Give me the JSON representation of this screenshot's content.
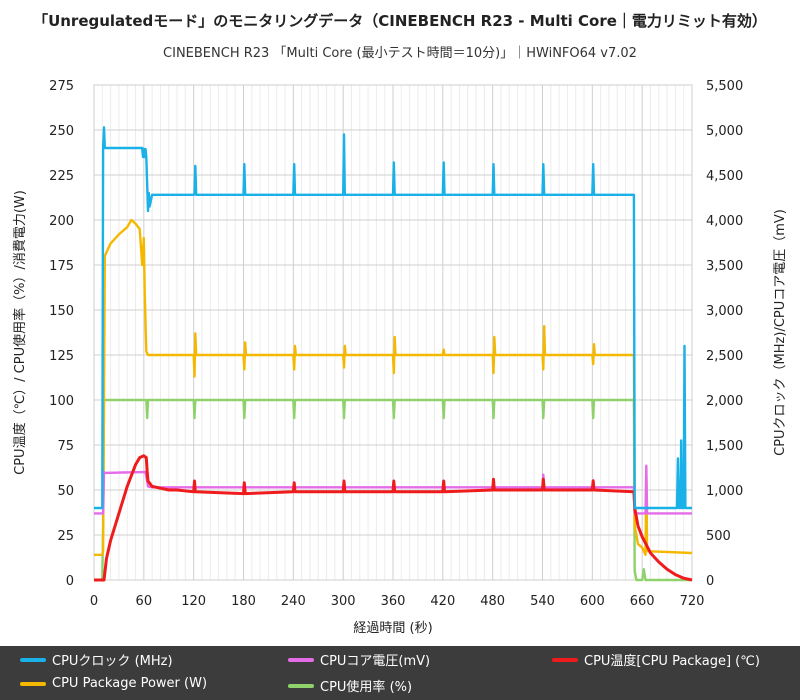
{
  "header": {
    "title": "「Unregulatedモード」のモニタリングデータ（CINEBENCH R23 - Multi Core｜電力リミット有効）",
    "subtitle": "CINEBENCH R23 「Multi Core (最小テスト時間＝10分)」｜HWiNFO64 v7.02"
  },
  "chart_data": {
    "type": "line",
    "title": "「Unregulatedモード」のモニタリングデータ（CINEBENCH R23 - Multi Core｜電力リミット有効）",
    "xlabel": "経過時間 (秒)",
    "ylabel_left": "CPU温度（℃）/ CPU使用率（%）/消費電力(W)",
    "ylabel_right": "CPUクロック（MHz)/CPUコア電圧（mV)",
    "xlim": [
      0,
      720
    ],
    "ylim_left": [
      0,
      275
    ],
    "ylim_right": [
      0,
      5500
    ],
    "x_ticks": [
      "0",
      "60",
      "120",
      "180",
      "240",
      "300",
      "360",
      "420",
      "480",
      "540",
      "600",
      "660",
      "720"
    ],
    "y_ticks_left": [
      "0",
      "25",
      "50",
      "75",
      "100",
      "125",
      "150",
      "175",
      "200",
      "225",
      "250",
      "275"
    ],
    "y_ticks_right": [
      "0",
      "500",
      "1,000",
      "1,500",
      "2,000",
      "2,500",
      "3,000",
      "3,500",
      "4,000",
      "4,500",
      "5,000",
      "5,500"
    ],
    "grid": true,
    "series": [
      {
        "name": "CPUクロック (MHz)",
        "axis": "right",
        "color": "#1ab0e8",
        "points": [
          [
            0,
            800
          ],
          [
            10,
            800
          ],
          [
            11,
            4800
          ],
          [
            12,
            5030
          ],
          [
            13,
            4800
          ],
          [
            58,
            4800
          ],
          [
            59,
            4700
          ],
          [
            60,
            4790
          ],
          [
            61,
            4700
          ],
          [
            62,
            4790
          ],
          [
            63,
            4700
          ],
          [
            65,
            4100
          ],
          [
            66,
            4300
          ],
          [
            67,
            4150
          ],
          [
            70,
            4280
          ],
          [
            120,
            4280
          ],
          [
            121,
            4290
          ],
          [
            122,
            4600
          ],
          [
            123,
            4280
          ],
          [
            180,
            4280
          ],
          [
            181,
            4620
          ],
          [
            182,
            4280
          ],
          [
            240,
            4280
          ],
          [
            241,
            4620
          ],
          [
            242,
            4280
          ],
          [
            300,
            4280
          ],
          [
            301,
            4950
          ],
          [
            302,
            4280
          ],
          [
            360,
            4280
          ],
          [
            361,
            4640
          ],
          [
            362,
            4280
          ],
          [
            420,
            4280
          ],
          [
            421,
            4640
          ],
          [
            422,
            4280
          ],
          [
            480,
            4280
          ],
          [
            481,
            4620
          ],
          [
            482,
            4280
          ],
          [
            540,
            4280
          ],
          [
            541,
            4620
          ],
          [
            542,
            4280
          ],
          [
            600,
            4280
          ],
          [
            601,
            4620
          ],
          [
            602,
            4280
          ],
          [
            650,
            4280
          ],
          [
            651,
            800
          ],
          [
            702,
            800
          ],
          [
            703,
            1350
          ],
          [
            704,
            800
          ],
          [
            706,
            800
          ],
          [
            707,
            1550
          ],
          [
            708,
            800
          ],
          [
            710,
            800
          ],
          [
            711,
            2600
          ],
          [
            712,
            800
          ],
          [
            720,
            800
          ]
        ]
      },
      {
        "name": "CPUコア電圧 (mV)",
        "axis": "right",
        "color": "#e56ce8",
        "points": [
          [
            0,
            740
          ],
          [
            11,
            740
          ],
          [
            12,
            1200
          ],
          [
            13,
            1190
          ],
          [
            62,
            1200
          ],
          [
            65,
            1040
          ],
          [
            70,
            1030
          ],
          [
            120,
            1030
          ],
          [
            121,
            1060
          ],
          [
            122,
            1030
          ],
          [
            180,
            1030
          ],
          [
            181,
            1080
          ],
          [
            182,
            1030
          ],
          [
            240,
            1030
          ],
          [
            241,
            1060
          ],
          [
            242,
            1030
          ],
          [
            300,
            1030
          ],
          [
            301,
            1090
          ],
          [
            302,
            1030
          ],
          [
            360,
            1030
          ],
          [
            361,
            1100
          ],
          [
            362,
            1030
          ],
          [
            420,
            1030
          ],
          [
            421,
            1100
          ],
          [
            422,
            1030
          ],
          [
            480,
            1030
          ],
          [
            481,
            1070
          ],
          [
            482,
            1030
          ],
          [
            540,
            1030
          ],
          [
            541,
            1170
          ],
          [
            542,
            1030
          ],
          [
            600,
            1030
          ],
          [
            601,
            1110
          ],
          [
            602,
            1030
          ],
          [
            650,
            1030
          ],
          [
            651,
            740
          ],
          [
            664,
            740
          ],
          [
            665,
            1270
          ],
          [
            666,
            740
          ],
          [
            720,
            740
          ]
        ]
      },
      {
        "name": "CPU温度[CPU Package] (℃)",
        "axis": "left",
        "color": "#ee1c1c",
        "points": [
          [
            0,
            0
          ],
          [
            10,
            0
          ],
          [
            12,
            0
          ],
          [
            15,
            12
          ],
          [
            20,
            22
          ],
          [
            30,
            37
          ],
          [
            40,
            52
          ],
          [
            50,
            64
          ],
          [
            55,
            68
          ],
          [
            60,
            69
          ],
          [
            63,
            68
          ],
          [
            64,
            60
          ],
          [
            65,
            55
          ],
          [
            70,
            52
          ],
          [
            80,
            51
          ],
          [
            90,
            50
          ],
          [
            100,
            50
          ],
          [
            120,
            49
          ],
          [
            121,
            55
          ],
          [
            122,
            49
          ],
          [
            180,
            48
          ],
          [
            181,
            54
          ],
          [
            182,
            48
          ],
          [
            240,
            49
          ],
          [
            241,
            54
          ],
          [
            242,
            49
          ],
          [
            300,
            49
          ],
          [
            301,
            55
          ],
          [
            302,
            49
          ],
          [
            360,
            49
          ],
          [
            361,
            55
          ],
          [
            362,
            49
          ],
          [
            420,
            49
          ],
          [
            421,
            55
          ],
          [
            422,
            49
          ],
          [
            480,
            50
          ],
          [
            481,
            56
          ],
          [
            482,
            50
          ],
          [
            540,
            50
          ],
          [
            541,
            56
          ],
          [
            542,
            50
          ],
          [
            600,
            50
          ],
          [
            601,
            55
          ],
          [
            602,
            50
          ],
          [
            650,
            49
          ],
          [
            651,
            40
          ],
          [
            655,
            30
          ],
          [
            660,
            24
          ],
          [
            670,
            15
          ],
          [
            680,
            10
          ],
          [
            690,
            6
          ],
          [
            700,
            3
          ],
          [
            710,
            1
          ],
          [
            720,
            0
          ]
        ]
      },
      {
        "name": "CPU Package Power (W)",
        "axis": "left",
        "color": "#f5b800",
        "points": [
          [
            0,
            14
          ],
          [
            10,
            14
          ],
          [
            11,
            16
          ],
          [
            13,
            180
          ],
          [
            20,
            187
          ],
          [
            30,
            192
          ],
          [
            40,
            196
          ],
          [
            45,
            200
          ],
          [
            50,
            198
          ],
          [
            55,
            195
          ],
          [
            58,
            175
          ],
          [
            60,
            190
          ],
          [
            61,
            160
          ],
          [
            63,
            127
          ],
          [
            65,
            125
          ],
          [
            120,
            125
          ],
          [
            121,
            113
          ],
          [
            122,
            137
          ],
          [
            123,
            125
          ],
          [
            180,
            125
          ],
          [
            181,
            117
          ],
          [
            182,
            132
          ],
          [
            183,
            125
          ],
          [
            240,
            125
          ],
          [
            241,
            117
          ],
          [
            242,
            130
          ],
          [
            243,
            125
          ],
          [
            300,
            125
          ],
          [
            301,
            118
          ],
          [
            302,
            130
          ],
          [
            303,
            125
          ],
          [
            360,
            125
          ],
          [
            361,
            115
          ],
          [
            362,
            135
          ],
          [
            363,
            125
          ],
          [
            420,
            125
          ],
          [
            421,
            128
          ],
          [
            422,
            125
          ],
          [
            480,
            125
          ],
          [
            481,
            115
          ],
          [
            482,
            135
          ],
          [
            483,
            125
          ],
          [
            540,
            125
          ],
          [
            541,
            117
          ],
          [
            542,
            141
          ],
          [
            543,
            125
          ],
          [
            600,
            125
          ],
          [
            601,
            120
          ],
          [
            602,
            131
          ],
          [
            603,
            125
          ],
          [
            650,
            125
          ],
          [
            651,
            30
          ],
          [
            655,
            20
          ],
          [
            660,
            18
          ],
          [
            664,
            14
          ],
          [
            665,
            60
          ],
          [
            666,
            16
          ],
          [
            720,
            15
          ]
        ]
      },
      {
        "name": "CPU使用率 (%)",
        "axis": "left",
        "color": "#8fd16a",
        "points": [
          [
            0,
            0
          ],
          [
            10,
            0
          ],
          [
            11,
            30
          ],
          [
            12,
            100
          ],
          [
            63,
            100
          ],
          [
            64,
            90
          ],
          [
            65,
            100
          ],
          [
            120,
            100
          ],
          [
            121,
            90
          ],
          [
            122,
            100
          ],
          [
            180,
            100
          ],
          [
            181,
            90
          ],
          [
            182,
            100
          ],
          [
            240,
            100
          ],
          [
            241,
            90
          ],
          [
            242,
            100
          ],
          [
            300,
            100
          ],
          [
            301,
            90
          ],
          [
            302,
            100
          ],
          [
            360,
            100
          ],
          [
            361,
            90
          ],
          [
            362,
            100
          ],
          [
            420,
            100
          ],
          [
            421,
            90
          ],
          [
            422,
            100
          ],
          [
            480,
            100
          ],
          [
            481,
            90
          ],
          [
            482,
            100
          ],
          [
            540,
            100
          ],
          [
            541,
            90
          ],
          [
            542,
            100
          ],
          [
            600,
            100
          ],
          [
            601,
            90
          ],
          [
            602,
            100
          ],
          [
            650,
            100
          ],
          [
            651,
            5
          ],
          [
            653,
            0
          ],
          [
            660,
            0
          ],
          [
            662,
            6
          ],
          [
            664,
            0
          ],
          [
            720,
            0
          ]
        ]
      }
    ]
  },
  "legend": {
    "items": [
      {
        "label": "CPUクロック (MHz)",
        "color": "#1ab0e8"
      },
      {
        "label": "CPUコア電圧(mV)",
        "color": "#e56ce8"
      },
      {
        "label": "CPU温度[CPU Package] (℃)",
        "color": "#ee1c1c"
      },
      {
        "label": "CPU Package Power (W)",
        "color": "#f5b800"
      },
      {
        "label": "CPU使用率 (%)",
        "color": "#8fd16a"
      }
    ]
  }
}
